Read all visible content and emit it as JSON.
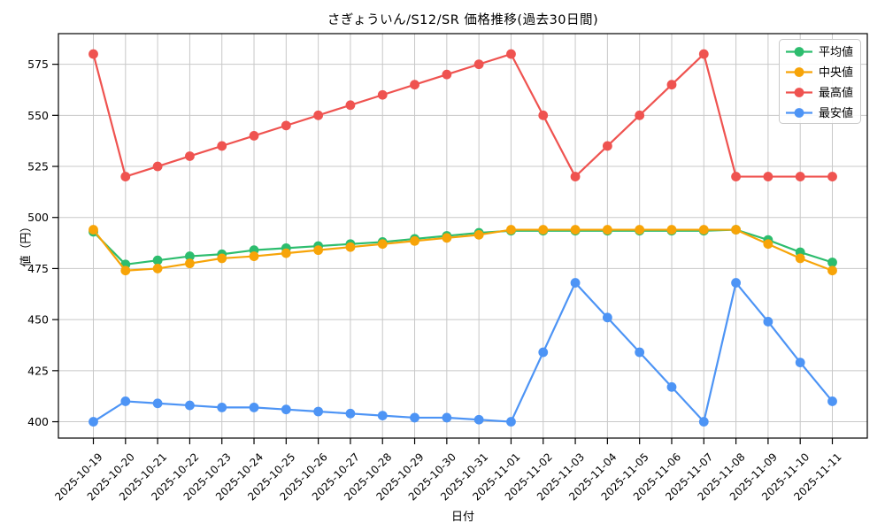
{
  "chart_data": {
    "type": "line",
    "title": "さぎょういん/S12/SR 価格推移(過去30日間)",
    "xlabel": "日付",
    "ylabel": "値（円）",
    "categories": [
      "2025-10-19",
      "2025-10-20",
      "2025-10-21",
      "2025-10-22",
      "2025-10-23",
      "2025-10-24",
      "2025-10-25",
      "2025-10-26",
      "2025-10-27",
      "2025-10-28",
      "2025-10-29",
      "2025-10-30",
      "2025-10-31",
      "2025-11-01",
      "2025-11-02",
      "2025-11-03",
      "2025-11-04",
      "2025-11-05",
      "2025-11-06",
      "2025-11-07",
      "2025-11-08",
      "2025-11-09",
      "2025-11-10",
      "2025-11-11"
    ],
    "series": [
      {
        "name": "平均値",
        "color": "#2dbd6e",
        "values": [
          493,
          477,
          479,
          481,
          482,
          484,
          485,
          486,
          487,
          488,
          489.5,
          491,
          492.5,
          493.5,
          493.5,
          493.5,
          493.5,
          493.5,
          493.5,
          493.5,
          494,
          489,
          483,
          478
        ]
      },
      {
        "name": "中央値",
        "color": "#f7a408",
        "values": [
          494,
          474,
          475,
          477.5,
          480,
          481,
          482.5,
          484,
          485.5,
          487,
          488.5,
          490,
          491.5,
          494,
          494,
          494,
          494,
          494,
          494,
          494,
          494,
          487,
          480,
          474
        ]
      },
      {
        "name": "最高値",
        "color": "#ef5350",
        "values": [
          580,
          520,
          525,
          530,
          535,
          540,
          545,
          550,
          555,
          560,
          565,
          570,
          575,
          580,
          550,
          520,
          535,
          550,
          565,
          580,
          520,
          520,
          520,
          520
        ]
      },
      {
        "name": "最安値",
        "color": "#4d94f5",
        "values": [
          400,
          410,
          409,
          408,
          407,
          407,
          406,
          405,
          404,
          403,
          402,
          402,
          401,
          400,
          434,
          468,
          451,
          434,
          417,
          400,
          468,
          449,
          429,
          410
        ]
      }
    ],
    "ylim": [
      392,
      590
    ],
    "yticks": [
      400,
      425,
      450,
      475,
      500,
      525,
      550,
      575
    ],
    "grid": true,
    "legend_position": "upper right",
    "grid_color": "#c8c8c8",
    "spine_color": "#000000"
  }
}
